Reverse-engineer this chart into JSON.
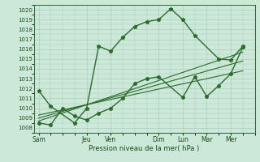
{
  "xlabel": "Pression niveau de la mer( hPa )",
  "ylim": [
    1007.5,
    1020.5
  ],
  "yticks": [
    1008,
    1009,
    1010,
    1011,
    1012,
    1013,
    1014,
    1015,
    1016,
    1017,
    1018,
    1019,
    1020
  ],
  "x_labels": [
    "Sam",
    "Jeu",
    "Ven",
    "Dim",
    "Lun",
    "Mar",
    "Mer"
  ],
  "x_positions": [
    0,
    2,
    3,
    5,
    6,
    7,
    8
  ],
  "xlim": [
    -0.2,
    9.0
  ],
  "main_line_x": [
    0,
    0.5,
    1.5,
    2.0,
    2.5,
    3.0,
    3.5,
    4.0,
    4.5,
    5.0,
    5.5,
    6.0,
    6.5,
    7.5,
    8.0,
    8.5
  ],
  "main_line_y": [
    1011.8,
    1010.2,
    1008.5,
    1010.0,
    1016.3,
    1015.8,
    1017.2,
    1018.3,
    1018.8,
    1019.0,
    1020.1,
    1019.0,
    1017.4,
    1015.0,
    1014.9,
    1016.3
  ],
  "second_line_x": [
    0,
    0.5,
    1.0,
    1.5,
    2.0,
    2.5,
    3.0,
    3.5,
    4.0,
    4.5,
    5.0,
    6.0,
    6.5,
    7.0,
    7.5,
    8.0,
    8.5
  ],
  "second_line_y": [
    1008.5,
    1008.3,
    1010.0,
    1009.2,
    1008.8,
    1009.5,
    1010.0,
    1011.0,
    1012.5,
    1013.0,
    1013.2,
    1011.1,
    1013.2,
    1011.2,
    1012.3,
    1013.5,
    1016.2
  ],
  "trend_lines": [
    {
      "x": [
        0,
        8.5
      ],
      "y": [
        1008.7,
        1015.7
      ]
    },
    {
      "x": [
        0,
        8.5
      ],
      "y": [
        1009.0,
        1014.8
      ]
    },
    {
      "x": [
        0,
        8.5
      ],
      "y": [
        1009.3,
        1013.8
      ]
    }
  ],
  "line_color": "#2d6a2d",
  "bg_color": "#cce8d8",
  "grid_color": "#aacfba",
  "axis_color": "#2d6a2d",
  "tick_label_color": "#1a4a1a",
  "marker_size_main": 3.5,
  "marker_size_second": 2.5,
  "line_width": 1.0
}
